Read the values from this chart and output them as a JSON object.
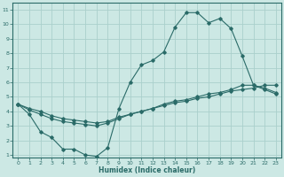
{
  "xlabel": "Humidex (Indice chaleur)",
  "bg_color": "#cce8e4",
  "grid_color": "#aad0cc",
  "line_color": "#2a6b68",
  "xlim": [
    -0.5,
    23.5
  ],
  "ylim": [
    0.8,
    11.5
  ],
  "xticks": [
    0,
    1,
    2,
    3,
    4,
    5,
    6,
    7,
    8,
    9,
    10,
    11,
    12,
    13,
    14,
    15,
    16,
    17,
    18,
    19,
    20,
    21,
    22,
    23
  ],
  "yticks": [
    1,
    2,
    3,
    4,
    5,
    6,
    7,
    8,
    9,
    10,
    11
  ],
  "line1_x": [
    0,
    1,
    2,
    3,
    4,
    5,
    6,
    7,
    8,
    9,
    10,
    11,
    12,
    13,
    14,
    15,
    16,
    17,
    18,
    19,
    20,
    21,
    22,
    23
  ],
  "line1_y": [
    4.5,
    3.8,
    2.6,
    2.2,
    1.4,
    1.4,
    1.0,
    0.9,
    1.5,
    4.2,
    6.0,
    7.2,
    7.5,
    8.1,
    9.8,
    10.8,
    10.8,
    10.1,
    10.4,
    9.7,
    7.8,
    5.8,
    5.5,
    5.2
  ],
  "line2_x": [
    0,
    1,
    2,
    3,
    4,
    5,
    6,
    7,
    8,
    9,
    10,
    11,
    12,
    13,
    14,
    15,
    16,
    17,
    18,
    19,
    20,
    21,
    22,
    23
  ],
  "line2_y": [
    4.5,
    4.1,
    3.8,
    3.5,
    3.3,
    3.2,
    3.1,
    3.0,
    3.2,
    3.5,
    3.8,
    4.0,
    4.2,
    4.5,
    4.7,
    4.8,
    5.0,
    5.2,
    5.3,
    5.5,
    5.8,
    5.8,
    5.6,
    5.3
  ],
  "line3_x": [
    0,
    1,
    2,
    3,
    4,
    5,
    6,
    7,
    8,
    9,
    10,
    11,
    12,
    13,
    14,
    15,
    16,
    17,
    18,
    19,
    20,
    21,
    22,
    23
  ],
  "line3_y": [
    4.5,
    4.2,
    4.0,
    3.7,
    3.5,
    3.4,
    3.3,
    3.2,
    3.3,
    3.6,
    3.8,
    4.0,
    4.2,
    4.4,
    4.6,
    4.7,
    4.9,
    5.0,
    5.2,
    5.4,
    5.5,
    5.6,
    5.8,
    5.8
  ]
}
